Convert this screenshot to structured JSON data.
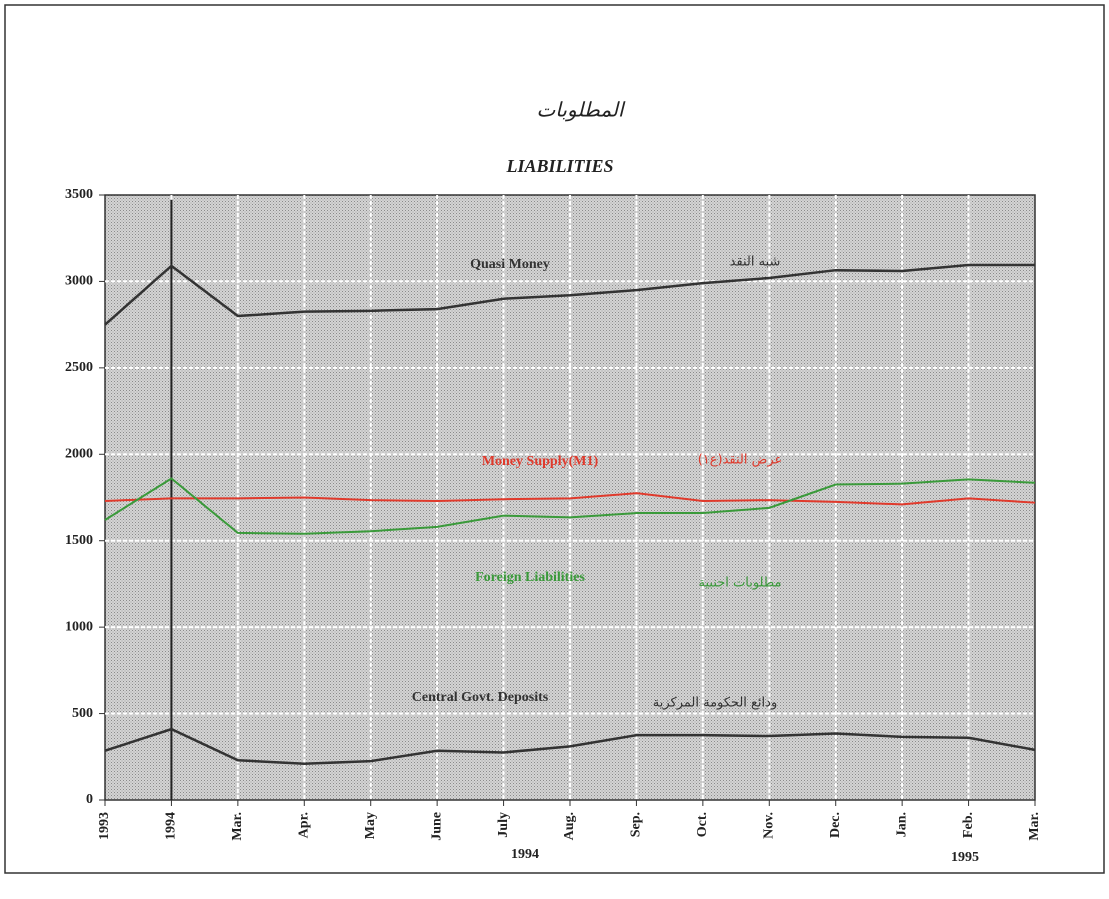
{
  "chart_data": {
    "type": "line",
    "title": "المطلوبات",
    "subtitle": "LIABILITIES",
    "categories": [
      "1993",
      "1994",
      "Mar.",
      "Apr.",
      "May",
      "June",
      "July",
      "Aug.",
      "Sep.",
      "Oct.",
      "Nov.",
      "Dec.",
      "Jan.",
      "Feb.",
      "Mar."
    ],
    "year_labels": [
      "1994",
      "1995"
    ],
    "series": [
      {
        "name": "Quasi Money",
        "arabic_name": "شبه النقد",
        "color": "#333333",
        "values": [
          2750,
          3090,
          2800,
          2825,
          2830,
          2840,
          2900,
          2920,
          2950,
          2990,
          3020,
          3065,
          3060,
          3095,
          3095
        ]
      },
      {
        "name": "Money Supply(M1)",
        "arabic_name": "عرض النقد(ع١)",
        "color": "#e03a2c",
        "values": [
          1730,
          1745,
          1745,
          1750,
          1735,
          1730,
          1740,
          1745,
          1775,
          1730,
          1735,
          1725,
          1710,
          1745,
          1720
        ]
      },
      {
        "name": "Foreign Liabilities",
        "arabic_name": "مطلوبات اجنبية",
        "color": "#3a9a3a",
        "values": [
          1620,
          1860,
          1545,
          1540,
          1555,
          1580,
          1645,
          1635,
          1660,
          1660,
          1690,
          1825,
          1830,
          1855,
          1835
        ]
      },
      {
        "name": "Central Govt. Deposits",
        "arabic_name": "ودائع الحكومة المركزية",
        "color": "#333333",
        "values": [
          285,
          410,
          230,
          210,
          225,
          285,
          275,
          310,
          375,
          375,
          370,
          385,
          365,
          360,
          290
        ]
      }
    ],
    "ylim": [
      0,
      3500
    ],
    "yticks": [
      0,
      500,
      1000,
      1500,
      2000,
      2500,
      3000,
      3500
    ],
    "grid": true
  }
}
